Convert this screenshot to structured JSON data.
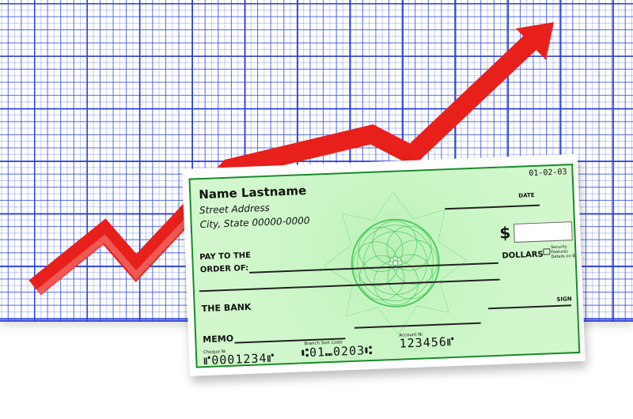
{
  "colors": {
    "grid": "#2c3cdc",
    "arrow": "#e8201c",
    "cheque": "#c8f5c4",
    "cheque_border": "#1a8a2a"
  },
  "cheque": {
    "name": "Name Lastname",
    "street": "Street Address",
    "city": "City, State 00000-0000",
    "date_number": "01-02-03",
    "date_label": "DATE",
    "dollar_sign": "$",
    "pay_to_line1": "PAY TO THE",
    "pay_to_line2": "ORDER OF:",
    "dollars_label": "DOLLARS",
    "security_note": "Security Features Details on Back",
    "bank": "THE BANK",
    "sign_label": "SIGN",
    "memo_label": "MEMO",
    "cheque_no_label": "Cheque №",
    "cheque_no": "⑈0001234⑈",
    "sort_code_label": "Branch Sort Code",
    "sort_code": "⑆01⑉0203⑆",
    "account_label": "Account №",
    "account_no": "123456⑈"
  },
  "icons": {
    "arrow": "trend-up-arrow-icon",
    "lock": "lock-icon"
  }
}
